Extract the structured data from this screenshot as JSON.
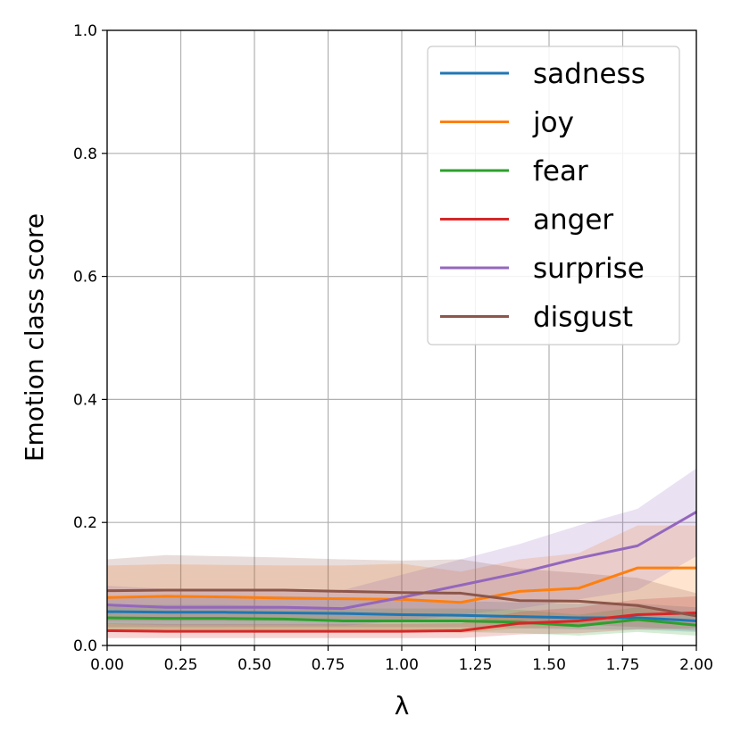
{
  "chart_data": {
    "type": "line",
    "xlabel": "λ",
    "ylabel": "Emotion class score",
    "xlim": [
      0.0,
      2.0
    ],
    "ylim": [
      0.0,
      1.0
    ],
    "x_ticks": [
      "0.00",
      "0.25",
      "0.50",
      "0.75",
      "1.00",
      "1.25",
      "1.50",
      "1.75",
      "2.00"
    ],
    "y_ticks": [
      "0.0",
      "0.2",
      "0.4",
      "0.6",
      "0.8",
      "1.0"
    ],
    "grid": true,
    "legend_position": "top-right",
    "x": [
      0.0,
      0.2,
      0.4,
      0.6,
      0.8,
      1.0,
      1.2,
      1.4,
      1.6,
      1.8,
      2.0
    ],
    "series": [
      {
        "name": "sadness",
        "color": "#1f77b4",
        "values": [
          0.055,
          0.054,
          0.054,
          0.053,
          0.052,
          0.05,
          0.049,
          0.047,
          0.045,
          0.045,
          0.04
        ],
        "lower": [
          0.03,
          0.03,
          0.03,
          0.03,
          0.03,
          0.03,
          0.03,
          0.028,
          0.026,
          0.026,
          0.022
        ],
        "upper": [
          0.08,
          0.08,
          0.08,
          0.08,
          0.078,
          0.075,
          0.072,
          0.07,
          0.068,
          0.068,
          0.062
        ]
      },
      {
        "name": "joy",
        "color": "#ff7f0e",
        "values": [
          0.078,
          0.08,
          0.079,
          0.077,
          0.076,
          0.075,
          0.07,
          0.088,
          0.093,
          0.126,
          0.126
        ],
        "lower": [
          0.025,
          0.026,
          0.026,
          0.025,
          0.025,
          0.025,
          0.02,
          0.028,
          0.03,
          0.05,
          0.055
        ],
        "upper": [
          0.13,
          0.132,
          0.131,
          0.13,
          0.13,
          0.133,
          0.12,
          0.14,
          0.15,
          0.195,
          0.195
        ]
      },
      {
        "name": "fear",
        "color": "#2ca02c",
        "values": [
          0.045,
          0.044,
          0.044,
          0.043,
          0.04,
          0.04,
          0.04,
          0.038,
          0.032,
          0.042,
          0.033
        ],
        "lower": [
          0.025,
          0.025,
          0.024,
          0.024,
          0.022,
          0.022,
          0.022,
          0.02,
          0.016,
          0.022,
          0.016
        ],
        "upper": [
          0.066,
          0.066,
          0.066,
          0.064,
          0.06,
          0.06,
          0.06,
          0.058,
          0.05,
          0.062,
          0.052
        ]
      },
      {
        "name": "anger",
        "color": "#d62728",
        "values": [
          0.024,
          0.023,
          0.023,
          0.023,
          0.023,
          0.023,
          0.024,
          0.036,
          0.04,
          0.05,
          0.053
        ],
        "lower": [
          0.012,
          0.012,
          0.012,
          0.012,
          0.012,
          0.012,
          0.012,
          0.018,
          0.02,
          0.026,
          0.028
        ],
        "upper": [
          0.036,
          0.035,
          0.035,
          0.035,
          0.035,
          0.035,
          0.036,
          0.055,
          0.062,
          0.075,
          0.08
        ]
      },
      {
        "name": "surprise",
        "color": "#9467bd",
        "values": [
          0.066,
          0.062,
          0.062,
          0.062,
          0.06,
          0.078,
          0.098,
          0.118,
          0.142,
          0.162,
          0.217
        ],
        "lower": [
          0.035,
          0.033,
          0.033,
          0.033,
          0.032,
          0.04,
          0.05,
          0.06,
          0.075,
          0.09,
          0.145
        ],
        "upper": [
          0.097,
          0.092,
          0.092,
          0.092,
          0.09,
          0.115,
          0.14,
          0.165,
          0.195,
          0.222,
          0.288
        ]
      },
      {
        "name": "disgust",
        "color": "#8c564b",
        "values": [
          0.089,
          0.09,
          0.09,
          0.09,
          0.088,
          0.086,
          0.085,
          0.073,
          0.072,
          0.065,
          0.048
        ],
        "lower": [
          0.04,
          0.04,
          0.04,
          0.04,
          0.04,
          0.038,
          0.038,
          0.034,
          0.034,
          0.03,
          0.024
        ],
        "upper": [
          0.14,
          0.147,
          0.145,
          0.143,
          0.14,
          0.138,
          0.14,
          0.125,
          0.118,
          0.11,
          0.085
        ]
      }
    ]
  }
}
